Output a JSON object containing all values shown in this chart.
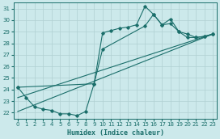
{
  "xlabel": "Humidex (Indice chaleur)",
  "background_color": "#cce9eb",
  "grid_color": "#b0d0d2",
  "line_color": "#1a6e6a",
  "xlim": [
    -0.5,
    23.5
  ],
  "ylim": [
    21.5,
    31.5
  ],
  "xticks": [
    0,
    1,
    2,
    3,
    4,
    5,
    6,
    7,
    8,
    9,
    10,
    11,
    12,
    13,
    14,
    15,
    16,
    17,
    18,
    19,
    20,
    21,
    22,
    23
  ],
  "yticks": [
    22,
    23,
    24,
    25,
    26,
    27,
    28,
    29,
    30,
    31
  ],
  "curve1_x": [
    0,
    1,
    2,
    3,
    4,
    5,
    6,
    7,
    8,
    9,
    10,
    11,
    12,
    13,
    14,
    15,
    16,
    17,
    18,
    19,
    20,
    21,
    22,
    23
  ],
  "curve1_y": [
    24.2,
    23.3,
    22.5,
    22.3,
    22.2,
    21.9,
    21.9,
    21.75,
    22.1,
    24.5,
    28.9,
    29.1,
    29.3,
    29.4,
    29.6,
    31.2,
    30.5,
    29.6,
    30.1,
    29.0,
    28.5,
    28.5,
    28.6,
    28.8
  ],
  "curve2_x": [
    0,
    9,
    10,
    15,
    16,
    17,
    18,
    19,
    20,
    21,
    22,
    23
  ],
  "curve2_y": [
    24.2,
    24.5,
    27.5,
    29.5,
    30.5,
    29.6,
    29.7,
    29.0,
    28.8,
    28.5,
    28.6,
    28.8
  ],
  "line1_x": [
    0,
    23
  ],
  "line1_y": [
    23.3,
    28.8
  ],
  "line2_x": [
    0,
    23
  ],
  "line2_y": [
    22.1,
    28.8
  ]
}
